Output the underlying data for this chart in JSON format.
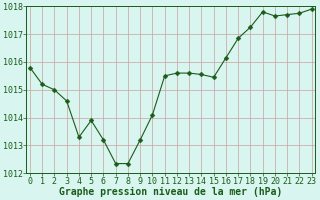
{
  "x": [
    0,
    1,
    2,
    3,
    4,
    5,
    6,
    7,
    8,
    9,
    10,
    11,
    12,
    13,
    14,
    15,
    16,
    17,
    18,
    19,
    20,
    21,
    22,
    23
  ],
  "y": [
    1015.8,
    1015.2,
    1015.0,
    1014.6,
    1013.3,
    1013.9,
    1013.2,
    1012.35,
    1012.35,
    1013.2,
    1014.1,
    1015.5,
    1015.6,
    1015.6,
    1015.55,
    1015.45,
    1016.15,
    1016.85,
    1017.25,
    1017.8,
    1017.65,
    1017.7,
    1017.75,
    1017.9
  ],
  "ylim": [
    1012,
    1018
  ],
  "yticks": [
    1012,
    1013,
    1014,
    1015,
    1016,
    1017,
    1018
  ],
  "xticks": [
    0,
    1,
    2,
    3,
    4,
    5,
    6,
    7,
    8,
    9,
    10,
    11,
    12,
    13,
    14,
    15,
    16,
    17,
    18,
    19,
    20,
    21,
    22,
    23
  ],
  "xlabel": "Graphe pression niveau de la mer (hPa)",
  "line_color": "#1a5c1a",
  "marker": "D",
  "marker_size": 2.5,
  "bg_color": "#d8f5f0",
  "plot_bg_color": "#d8f5f0",
  "grid_color": "#c8a0a0",
  "tick_label_color": "#1a5c1a",
  "xlabel_color": "#1a5c1a",
  "xlabel_fontsize": 7.0,
  "xlabel_fontweight": "bold",
  "tick_fontsize": 6.0,
  "spine_color": "#1a5c1a",
  "linewidth": 0.8
}
